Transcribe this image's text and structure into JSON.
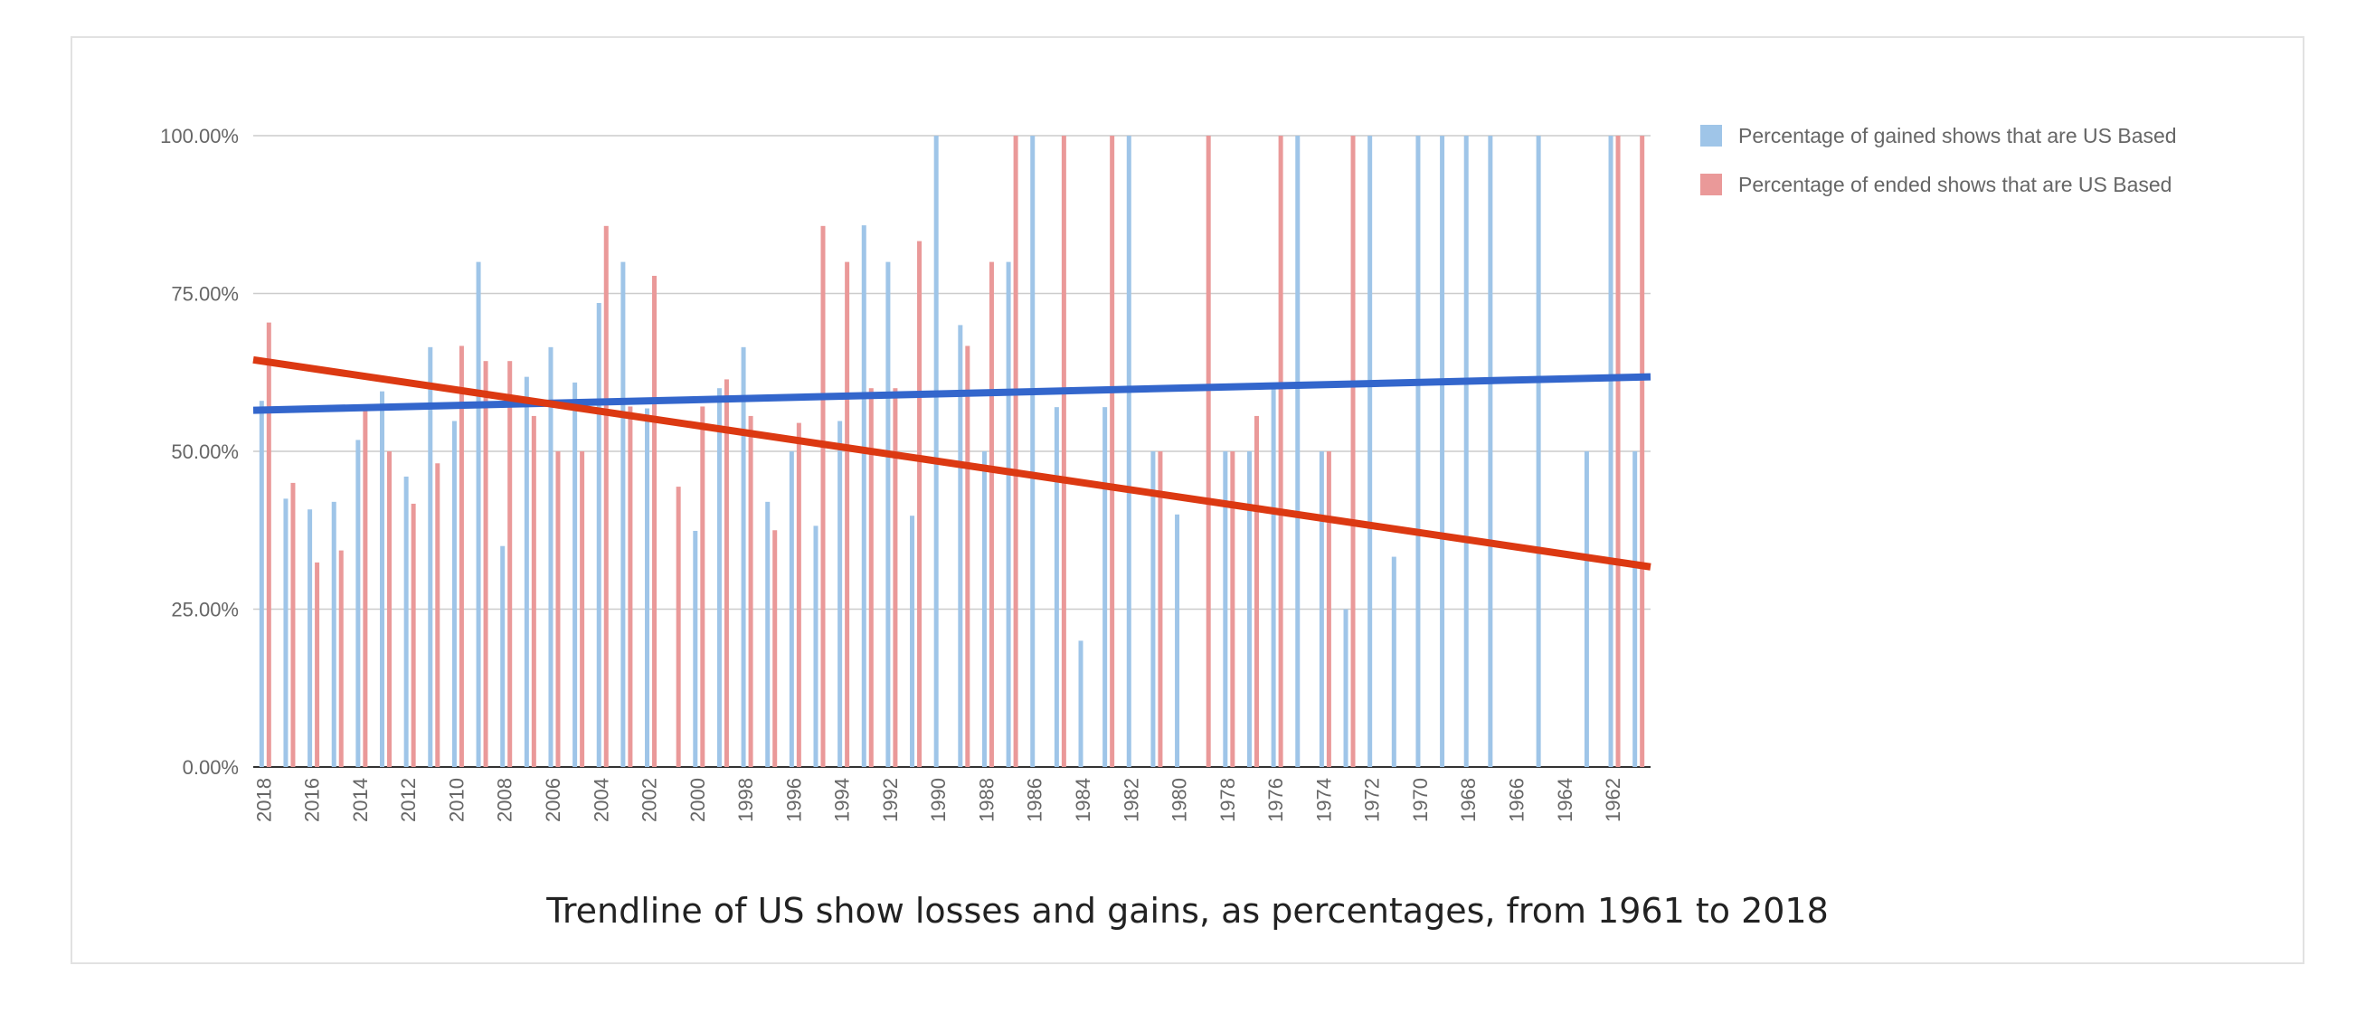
{
  "caption": "Trendline of US show losses and gains, as percentages, from 1961 to 2018",
  "chart_data": {
    "type": "bar",
    "x_axis_reversed": true,
    "categories": [
      2018,
      2017,
      2016,
      2015,
      2014,
      2013,
      2012,
      2011,
      2010,
      2009,
      2008,
      2007,
      2006,
      2005,
      2004,
      2003,
      2002,
      2001,
      2000,
      1999,
      1998,
      1997,
      1996,
      1995,
      1994,
      1993,
      1992,
      1991,
      1990,
      1989,
      1988,
      1987,
      1986,
      1985,
      1984,
      1983,
      1982,
      1981,
      1980,
      1979,
      1978,
      1977,
      1976,
      1975,
      1974,
      1973,
      1972,
      1971,
      1970,
      1969,
      1968,
      1967,
      1966,
      1965,
      1964,
      1963,
      1962,
      1961
    ],
    "x_tick_labels": [
      "2018",
      "2016",
      "2014",
      "2012",
      "2010",
      "2008",
      "2006",
      "2004",
      "2002",
      "2000",
      "1998",
      "1996",
      "1994",
      "1992",
      "1990",
      "1988",
      "1986",
      "1984",
      "1982",
      "1980",
      "1978",
      "1976",
      "1974",
      "1972",
      "1970",
      "1968",
      "1966",
      "1964",
      "1962"
    ],
    "y_tick_labels": [
      "0.00%",
      "25.00%",
      "50.00%",
      "75.00%",
      "100.00%"
    ],
    "ylim": [
      0,
      100
    ],
    "grid": true,
    "legend_position": "top-right",
    "series": [
      {
        "name": "Percentage of gained shows that are US Based",
        "color": "#9fc5e8",
        "values": [
          58,
          42.5,
          40.8,
          42,
          51.8,
          59.5,
          46,
          66.5,
          54.8,
          80,
          35,
          61.8,
          66.5,
          60.9,
          73.5,
          80,
          56.8,
          null,
          37.4,
          60,
          66.5,
          42,
          50,
          38.2,
          54.8,
          85.8,
          80,
          39.8,
          100,
          70,
          50,
          80,
          100,
          57,
          20,
          57,
          100,
          50,
          40,
          null,
          50,
          50,
          60,
          100,
          50,
          25,
          100,
          33.3,
          100,
          100,
          100,
          100,
          null,
          100,
          null,
          50,
          100,
          50
        ],
        "trendline": {
          "color": "#3366cc",
          "start": 56.5,
          "end": 61.8
        }
      },
      {
        "name": "Percentage of ended shows that are US Based",
        "color": "#ea9999",
        "values": [
          70.4,
          45,
          32.4,
          34.3,
          56.6,
          50,
          41.7,
          48.1,
          66.7,
          64.3,
          64.3,
          55.6,
          50,
          50,
          85.7,
          57.1,
          77.8,
          44.4,
          57.1,
          61.4,
          55.6,
          37.5,
          54.5,
          85.7,
          80,
          60,
          60,
          83.3,
          null,
          66.7,
          80,
          100,
          null,
          100,
          null,
          100,
          null,
          50,
          null,
          100,
          50,
          55.6,
          100,
          null,
          50,
          100,
          null,
          null,
          null,
          null,
          null,
          null,
          null,
          null,
          null,
          null,
          100,
          100
        ],
        "trendline": {
          "color": "#dc3912",
          "start": 64.5,
          "end": 31.7
        }
      }
    ]
  }
}
